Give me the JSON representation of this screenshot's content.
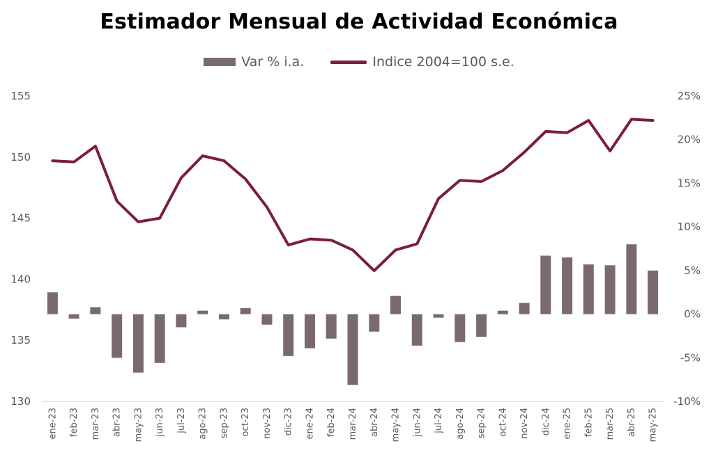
{
  "chart_data": {
    "type": "bar+line",
    "title": "Estimador Mensual de Actividad Económica",
    "legend_position": "top-center",
    "categories": [
      "ene-23",
      "feb-23",
      "mar-23",
      "abr-23",
      "may-23",
      "jun-23",
      "jul-23",
      "ago-23",
      "sep-23",
      "oct-23",
      "nov-23",
      "dic-23",
      "ene-24",
      "feb-24",
      "mar-24",
      "abr-24",
      "may-24",
      "jun-24",
      "jul-24",
      "ago-24",
      "sep-24",
      "oct-24",
      "nov-24",
      "dic-24",
      "ene-25",
      "feb-25",
      "mar-25",
      "abr-25",
      "may-25"
    ],
    "series": [
      {
        "name": "Var % i.a.",
        "type": "bar",
        "axis": "right",
        "color": "#7a6a6e",
        "values": [
          2.5,
          -0.5,
          0.8,
          -5.0,
          -6.7,
          -5.6,
          -1.5,
          0.4,
          -0.6,
          0.7,
          -1.2,
          -4.8,
          -3.9,
          -2.8,
          -8.1,
          -2.0,
          2.1,
          -3.6,
          -0.4,
          -3.2,
          -2.6,
          0.4,
          1.3,
          6.7,
          6.5,
          5.7,
          5.6,
          8.0,
          5.0
        ]
      },
      {
        "name": "Indice 2004=100 s.e.",
        "type": "line",
        "axis": "left",
        "color": "#7b1f35",
        "values": [
          149.7,
          149.6,
          150.9,
          146.4,
          144.7,
          145.0,
          148.3,
          150.1,
          149.7,
          148.2,
          145.9,
          142.8,
          143.3,
          143.2,
          142.4,
          140.7,
          142.4,
          142.9,
          146.6,
          148.1,
          148.0,
          148.9,
          150.4,
          152.1,
          152.0,
          153.0,
          150.5,
          153.1,
          153.0
        ]
      }
    ],
    "y_left": {
      "min": 130,
      "max": 155,
      "ticks": [
        "130",
        "135",
        "140",
        "145",
        "150",
        "155"
      ]
    },
    "y_right": {
      "min": -10,
      "max": 25,
      "ticks": [
        "-10%",
        "-5%",
        "0%",
        "5%",
        "10%",
        "15%",
        "20%",
        "25%"
      ]
    },
    "grid": false
  }
}
